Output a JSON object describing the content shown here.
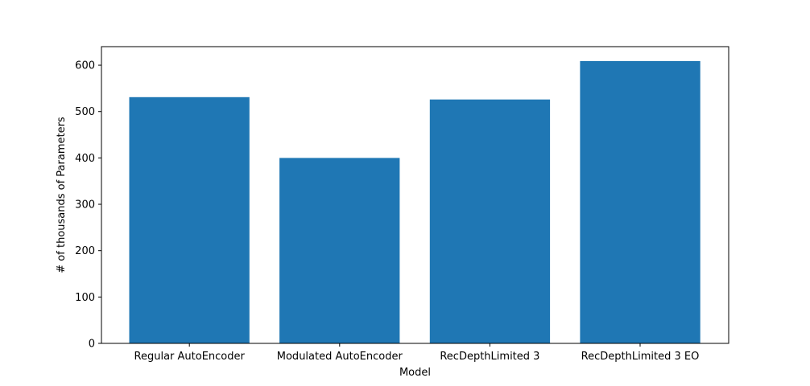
{
  "chart_data": {
    "type": "bar",
    "title": "",
    "xlabel": "Model",
    "ylabel": "# of thousands of Parameters",
    "categories": [
      "Regular AutoEncoder",
      "Modulated AutoEncoder",
      "RecDepthLimited 3",
      "RecDepthLimited 3 EO"
    ],
    "values": [
      531,
      400,
      526,
      609
    ],
    "ylim": [
      0,
      640
    ],
    "yticks": [
      0,
      100,
      200,
      300,
      400,
      500,
      600
    ],
    "grid": false,
    "legend": "none",
    "bar_color": "#1f77b4"
  }
}
